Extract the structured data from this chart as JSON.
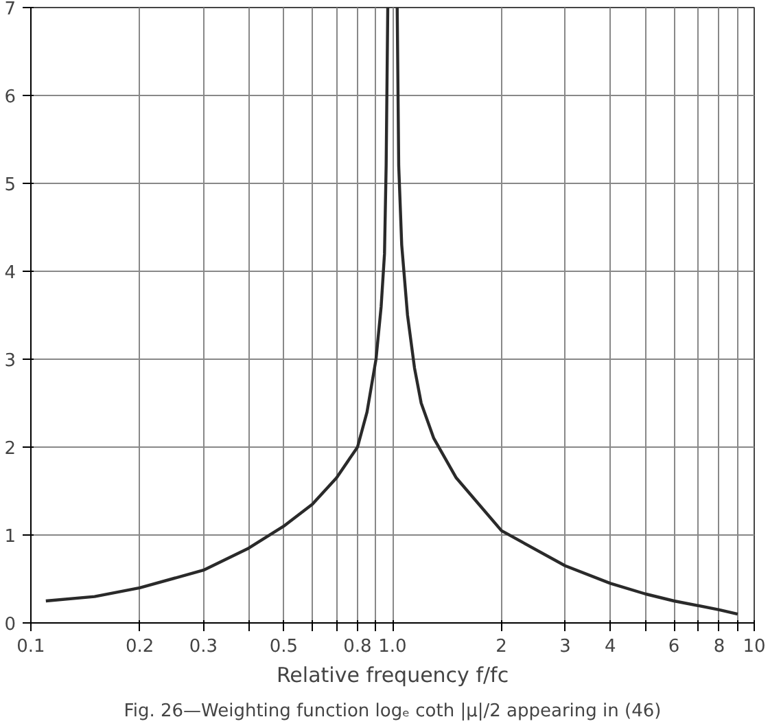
{
  "chart_data": {
    "type": "line",
    "xlabel": "Relative frequency f/fc",
    "annotations": [
      "Fig. 26—Weighting function logₑ coth |μ|/2 appearing in (46)"
    ],
    "log": "x",
    "grid": true,
    "line_style": "solid",
    "marker": "none",
    "x": [
      0.11,
      0.15,
      0.2,
      0.3,
      0.4,
      0.5,
      0.6,
      0.7,
      0.8,
      0.85,
      0.9,
      0.93,
      0.95,
      0.96,
      0.97,
      1.0,
      1.03,
      1.04,
      1.06,
      1.1,
      1.15,
      1.2,
      1.3,
      1.5,
      2,
      3,
      4,
      5,
      6,
      8,
      9
    ],
    "series": [
      {
        "color": "#2a2a2a",
        "values": [
          0.25,
          0.3,
          0.4,
          0.6,
          0.85,
          1.1,
          1.35,
          1.65,
          2.0,
          2.4,
          3.0,
          3.6,
          4.2,
          5.2,
          7,
          null,
          7,
          5.2,
          4.3,
          3.5,
          2.9,
          2.5,
          2.1,
          1.65,
          1.05,
          0.65,
          0.45,
          0.33,
          0.25,
          0.15,
          0.1
        ]
      }
    ],
    "xlim": [
      0.1,
      10
    ],
    "ylim": [
      0,
      7
    ],
    "xticks": [
      {
        "value": 0.1,
        "label": "0.1"
      },
      {
        "value": 0.2,
        "label": "0.2"
      },
      {
        "value": 0.3,
        "label": "0.3"
      },
      {
        "value": 0.4,
        "label": null
      },
      {
        "value": 0.5,
        "label": "0.5"
      },
      {
        "value": 0.6,
        "label": null
      },
      {
        "value": 0.7,
        "label": null
      },
      {
        "value": 0.8,
        "label": "0.8"
      },
      {
        "value": 0.9,
        "label": null
      },
      {
        "value": 1,
        "label": "1.0"
      },
      2,
      3,
      4,
      {
        "value": 5,
        "label": null
      },
      6,
      {
        "value": 7,
        "label": null
      },
      8,
      {
        "value": 9,
        "label": null
      },
      10
    ],
    "yticks": [
      0,
      1,
      2,
      3,
      4,
      5,
      6,
      7
    ]
  }
}
